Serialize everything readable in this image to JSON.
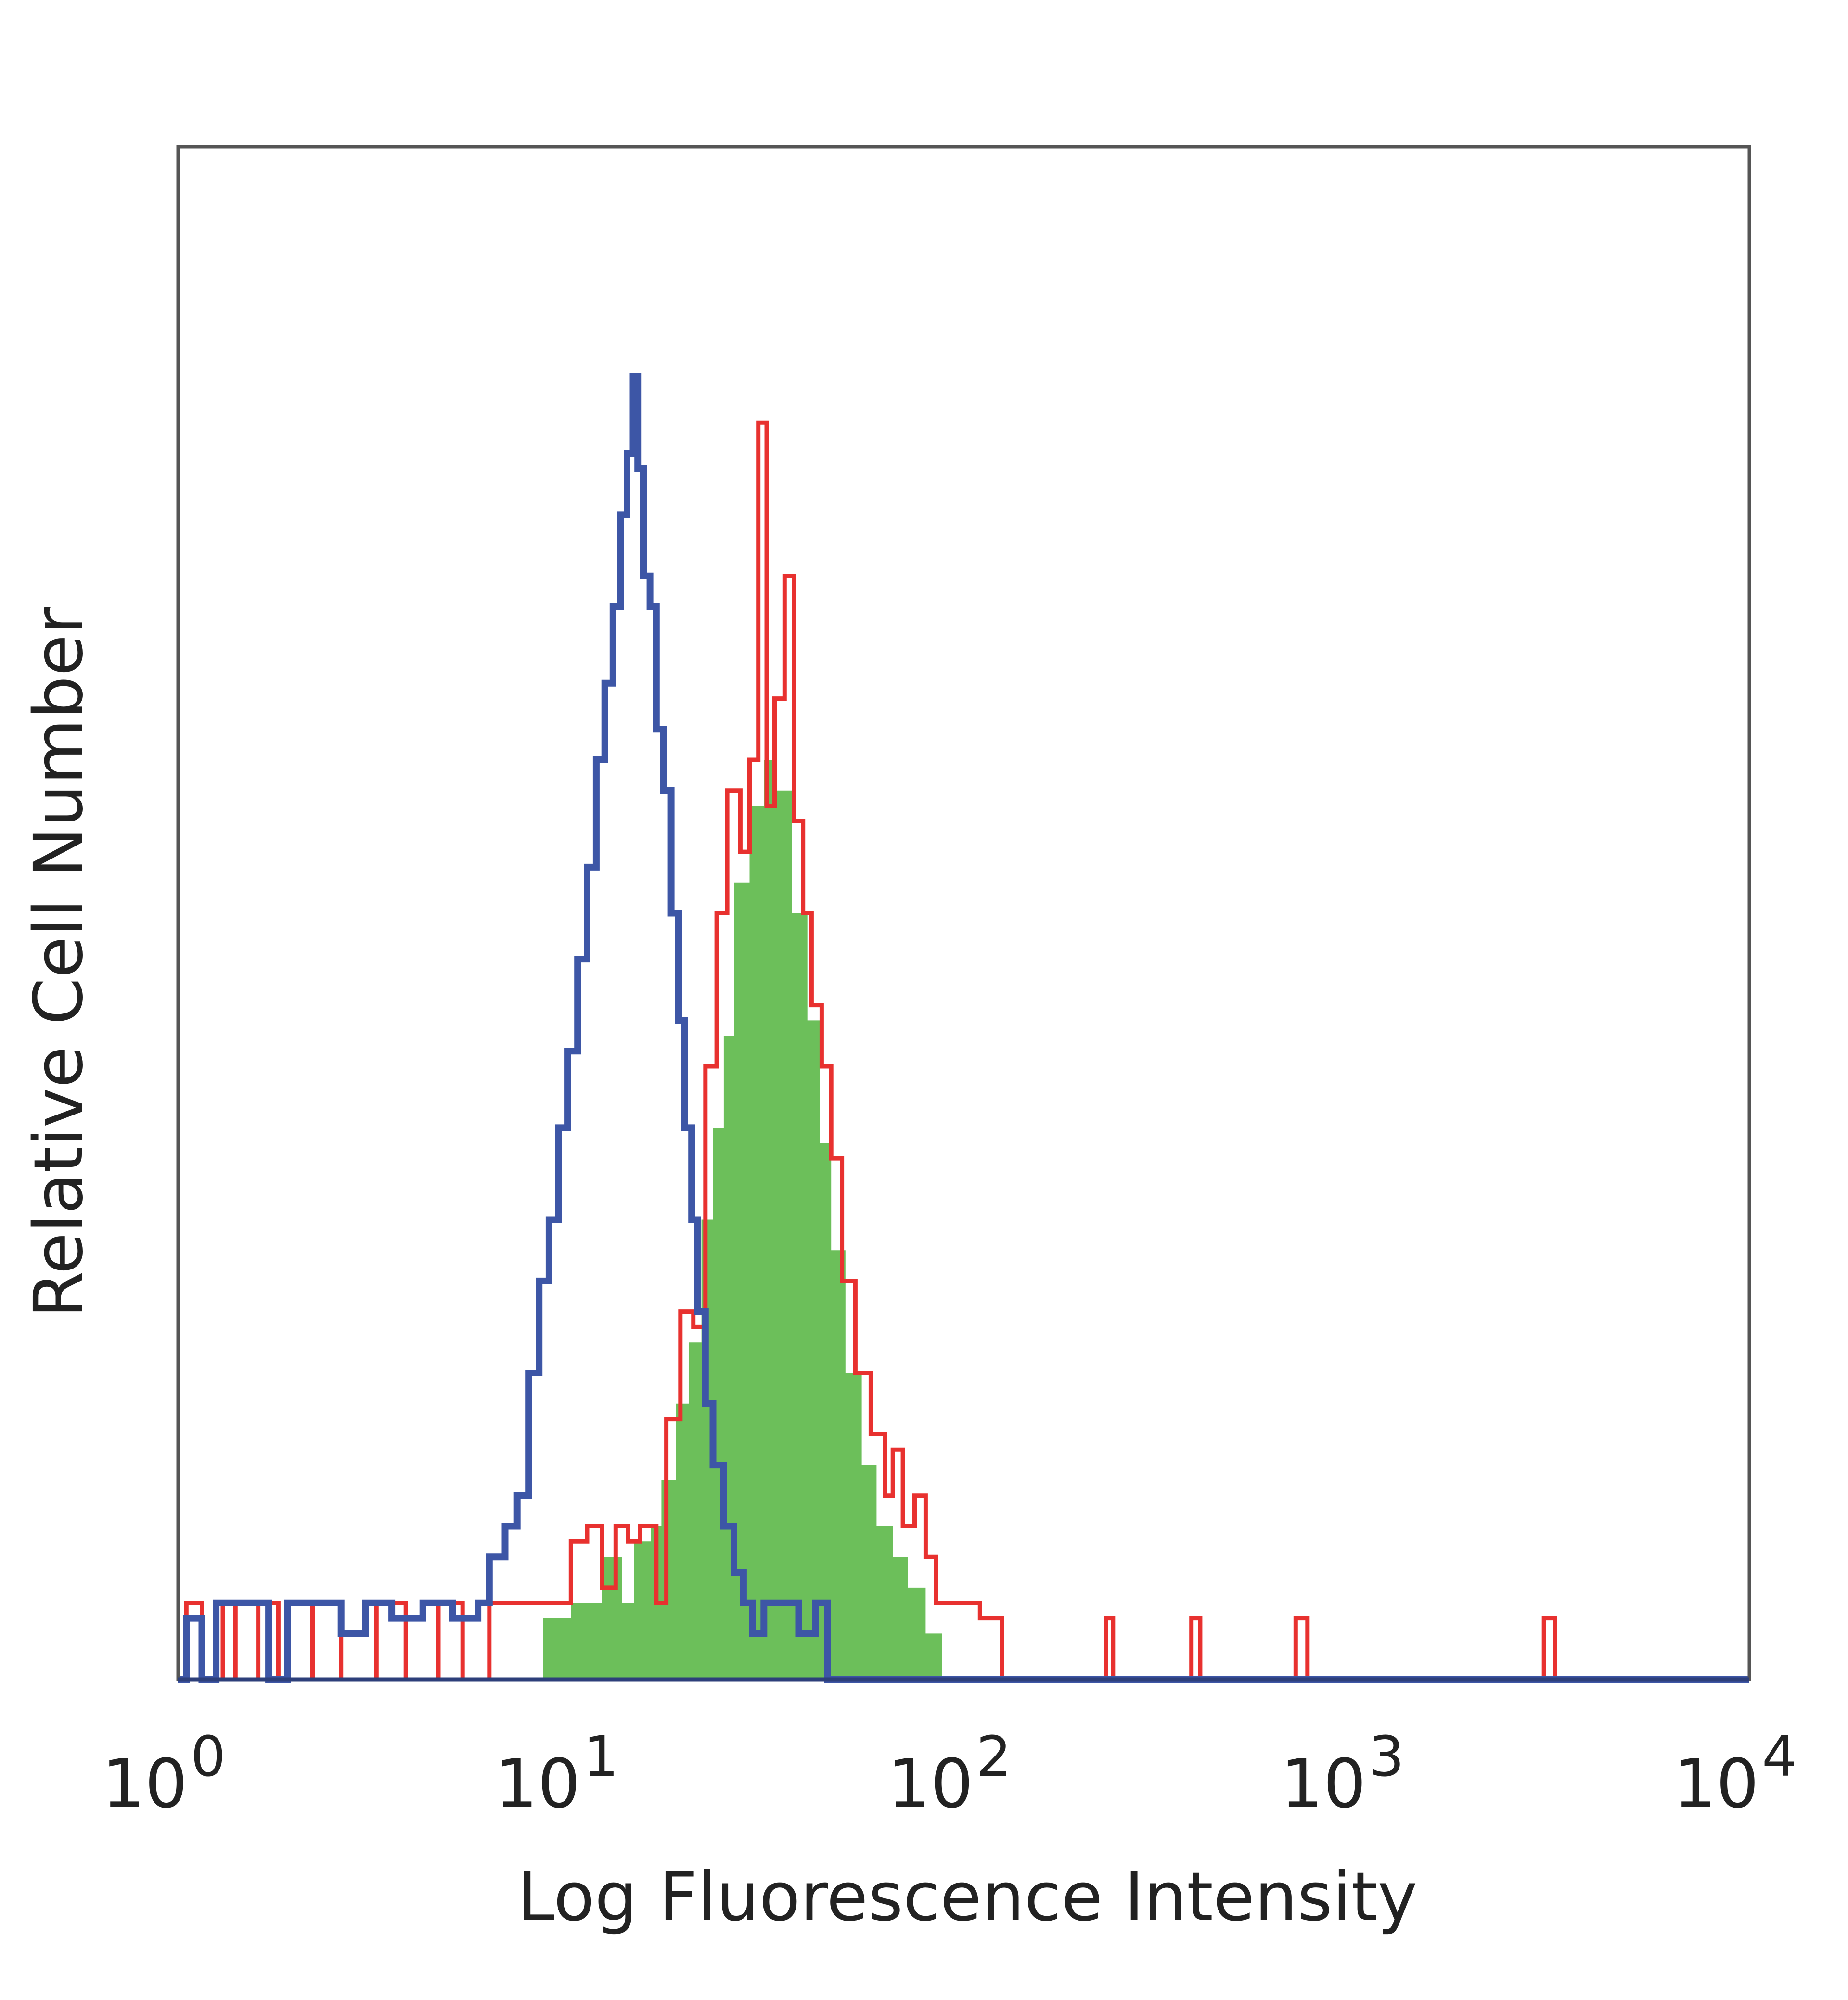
{
  "chart_data": {
    "type": "area",
    "title": "",
    "xlabel": "Log Fluorescence Intensity",
    "ylabel": "Relative Cell Number",
    "x_scale": "log",
    "xlim": [
      1,
      10000
    ],
    "ylim": [
      0,
      100
    ],
    "x_ticks": [
      {
        "value": 1,
        "base": "10",
        "exp": "0"
      },
      {
        "value": 10,
        "base": "10",
        "exp": "1"
      },
      {
        "value": 100,
        "base": "10",
        "exp": "2"
      },
      {
        "value": 1000,
        "base": "10",
        "exp": "3"
      },
      {
        "value": 10000,
        "base": "10",
        "exp": "4"
      }
    ],
    "grid": false,
    "legend": "none",
    "series": [
      {
        "style": "filled-green",
        "color": "#6cbf5a",
        "points": [
          [
            1.0,
            0
          ],
          [
            1.2,
            0
          ],
          [
            1.5,
            0
          ],
          [
            2.0,
            0
          ],
          [
            3.0,
            0
          ],
          [
            5.0,
            0
          ],
          [
            7.5,
            0
          ],
          [
            8.5,
            4
          ],
          [
            10.0,
            5
          ],
          [
            11.0,
            5
          ],
          [
            12.0,
            8
          ],
          [
            13.5,
            5
          ],
          [
            14.5,
            9
          ],
          [
            16.0,
            10
          ],
          [
            17.0,
            13
          ],
          [
            18.5,
            18
          ],
          [
            20.0,
            22
          ],
          [
            21.5,
            30
          ],
          [
            23.0,
            36
          ],
          [
            24.5,
            42
          ],
          [
            26.0,
            52
          ],
          [
            28.5,
            57
          ],
          [
            31.0,
            60
          ],
          [
            33.5,
            58
          ],
          [
            36.5,
            50
          ],
          [
            40.0,
            43
          ],
          [
            43.0,
            35
          ],
          [
            46.0,
            28
          ],
          [
            50.0,
            20
          ],
          [
            55.0,
            14
          ],
          [
            60.0,
            10
          ],
          [
            66.0,
            8
          ],
          [
            72.0,
            6
          ],
          [
            80.0,
            3
          ],
          [
            88.0,
            0
          ],
          [
            100.0,
            0
          ],
          [
            10000.0,
            0
          ]
        ]
      },
      {
        "style": "outline-red",
        "color": "#e8312f",
        "points": [
          [
            1.0,
            0
          ],
          [
            1.05,
            5
          ],
          [
            1.15,
            0
          ],
          [
            1.3,
            5
          ],
          [
            1.4,
            0
          ],
          [
            1.6,
            5
          ],
          [
            1.8,
            0
          ],
          [
            2.2,
            5
          ],
          [
            2.6,
            0
          ],
          [
            3.2,
            5
          ],
          [
            3.8,
            0
          ],
          [
            4.6,
            5
          ],
          [
            5.3,
            0
          ],
          [
            6.2,
            5
          ],
          [
            7.0,
            5
          ],
          [
            8.0,
            5
          ],
          [
            9.0,
            5
          ],
          [
            10.0,
            9
          ],
          [
            11.0,
            10
          ],
          [
            12.0,
            6
          ],
          [
            13.0,
            10
          ],
          [
            14.0,
            9
          ],
          [
            15.0,
            10
          ],
          [
            16.5,
            5
          ],
          [
            17.5,
            17
          ],
          [
            19.0,
            24
          ],
          [
            20.5,
            23
          ],
          [
            22.0,
            40
          ],
          [
            23.5,
            50
          ],
          [
            25.0,
            58
          ],
          [
            27.0,
            54
          ],
          [
            28.5,
            60
          ],
          [
            30.0,
            82
          ],
          [
            31.5,
            57
          ],
          [
            33.0,
            64
          ],
          [
            35.0,
            72
          ],
          [
            37.0,
            56
          ],
          [
            39.0,
            50
          ],
          [
            41.0,
            44
          ],
          [
            43.5,
            40
          ],
          [
            46.0,
            34
          ],
          [
            49.0,
            26
          ],
          [
            53.0,
            20
          ],
          [
            58.0,
            16
          ],
          [
            63.0,
            12
          ],
          [
            66.0,
            15
          ],
          [
            70.0,
            10
          ],
          [
            75.0,
            12
          ],
          [
            80.0,
            8
          ],
          [
            85.0,
            5
          ],
          [
            95.0,
            5
          ],
          [
            110.0,
            4
          ],
          [
            125.0,
            0
          ],
          [
            230.0,
            4
          ],
          [
            240.0,
            0
          ],
          [
            380.0,
            4
          ],
          [
            400.0,
            0
          ],
          [
            700.0,
            4
          ],
          [
            750.0,
            0
          ],
          [
            3000.0,
            4
          ],
          [
            3200.0,
            0
          ],
          [
            10000.0,
            0
          ]
        ]
      },
      {
        "style": "outline-blue",
        "color": "#3d56a6",
        "points": [
          [
            1.0,
            0
          ],
          [
            1.05,
            4
          ],
          [
            1.15,
            0
          ],
          [
            1.25,
            5
          ],
          [
            1.45,
            5
          ],
          [
            1.7,
            0
          ],
          [
            1.9,
            5
          ],
          [
            2.3,
            5
          ],
          [
            2.6,
            3
          ],
          [
            3.0,
            5
          ],
          [
            3.5,
            4
          ],
          [
            4.2,
            5
          ],
          [
            5.0,
            4
          ],
          [
            5.8,
            5
          ],
          [
            6.2,
            8
          ],
          [
            6.8,
            10
          ],
          [
            7.3,
            12
          ],
          [
            7.8,
            20
          ],
          [
            8.3,
            26
          ],
          [
            8.8,
            30
          ],
          [
            9.3,
            36
          ],
          [
            9.8,
            41
          ],
          [
            10.4,
            47
          ],
          [
            11.0,
            53
          ],
          [
            11.6,
            60
          ],
          [
            12.2,
            65
          ],
          [
            12.8,
            70
          ],
          [
            13.4,
            76
          ],
          [
            13.9,
            80
          ],
          [
            14.4,
            85
          ],
          [
            14.8,
            79
          ],
          [
            15.3,
            72
          ],
          [
            15.9,
            70
          ],
          [
            16.5,
            62
          ],
          [
            17.2,
            58
          ],
          [
            18.0,
            50
          ],
          [
            18.8,
            43
          ],
          [
            19.5,
            36
          ],
          [
            20.3,
            30
          ],
          [
            21.0,
            24
          ],
          [
            22.0,
            18
          ],
          [
            23.0,
            14
          ],
          [
            24.5,
            10
          ],
          [
            26.0,
            7
          ],
          [
            27.5,
            5
          ],
          [
            29.0,
            3
          ],
          [
            31.0,
            5
          ],
          [
            35.0,
            5
          ],
          [
            38.0,
            3
          ],
          [
            42.0,
            5
          ],
          [
            45.0,
            0
          ],
          [
            10000.0,
            0
          ]
        ]
      }
    ]
  }
}
